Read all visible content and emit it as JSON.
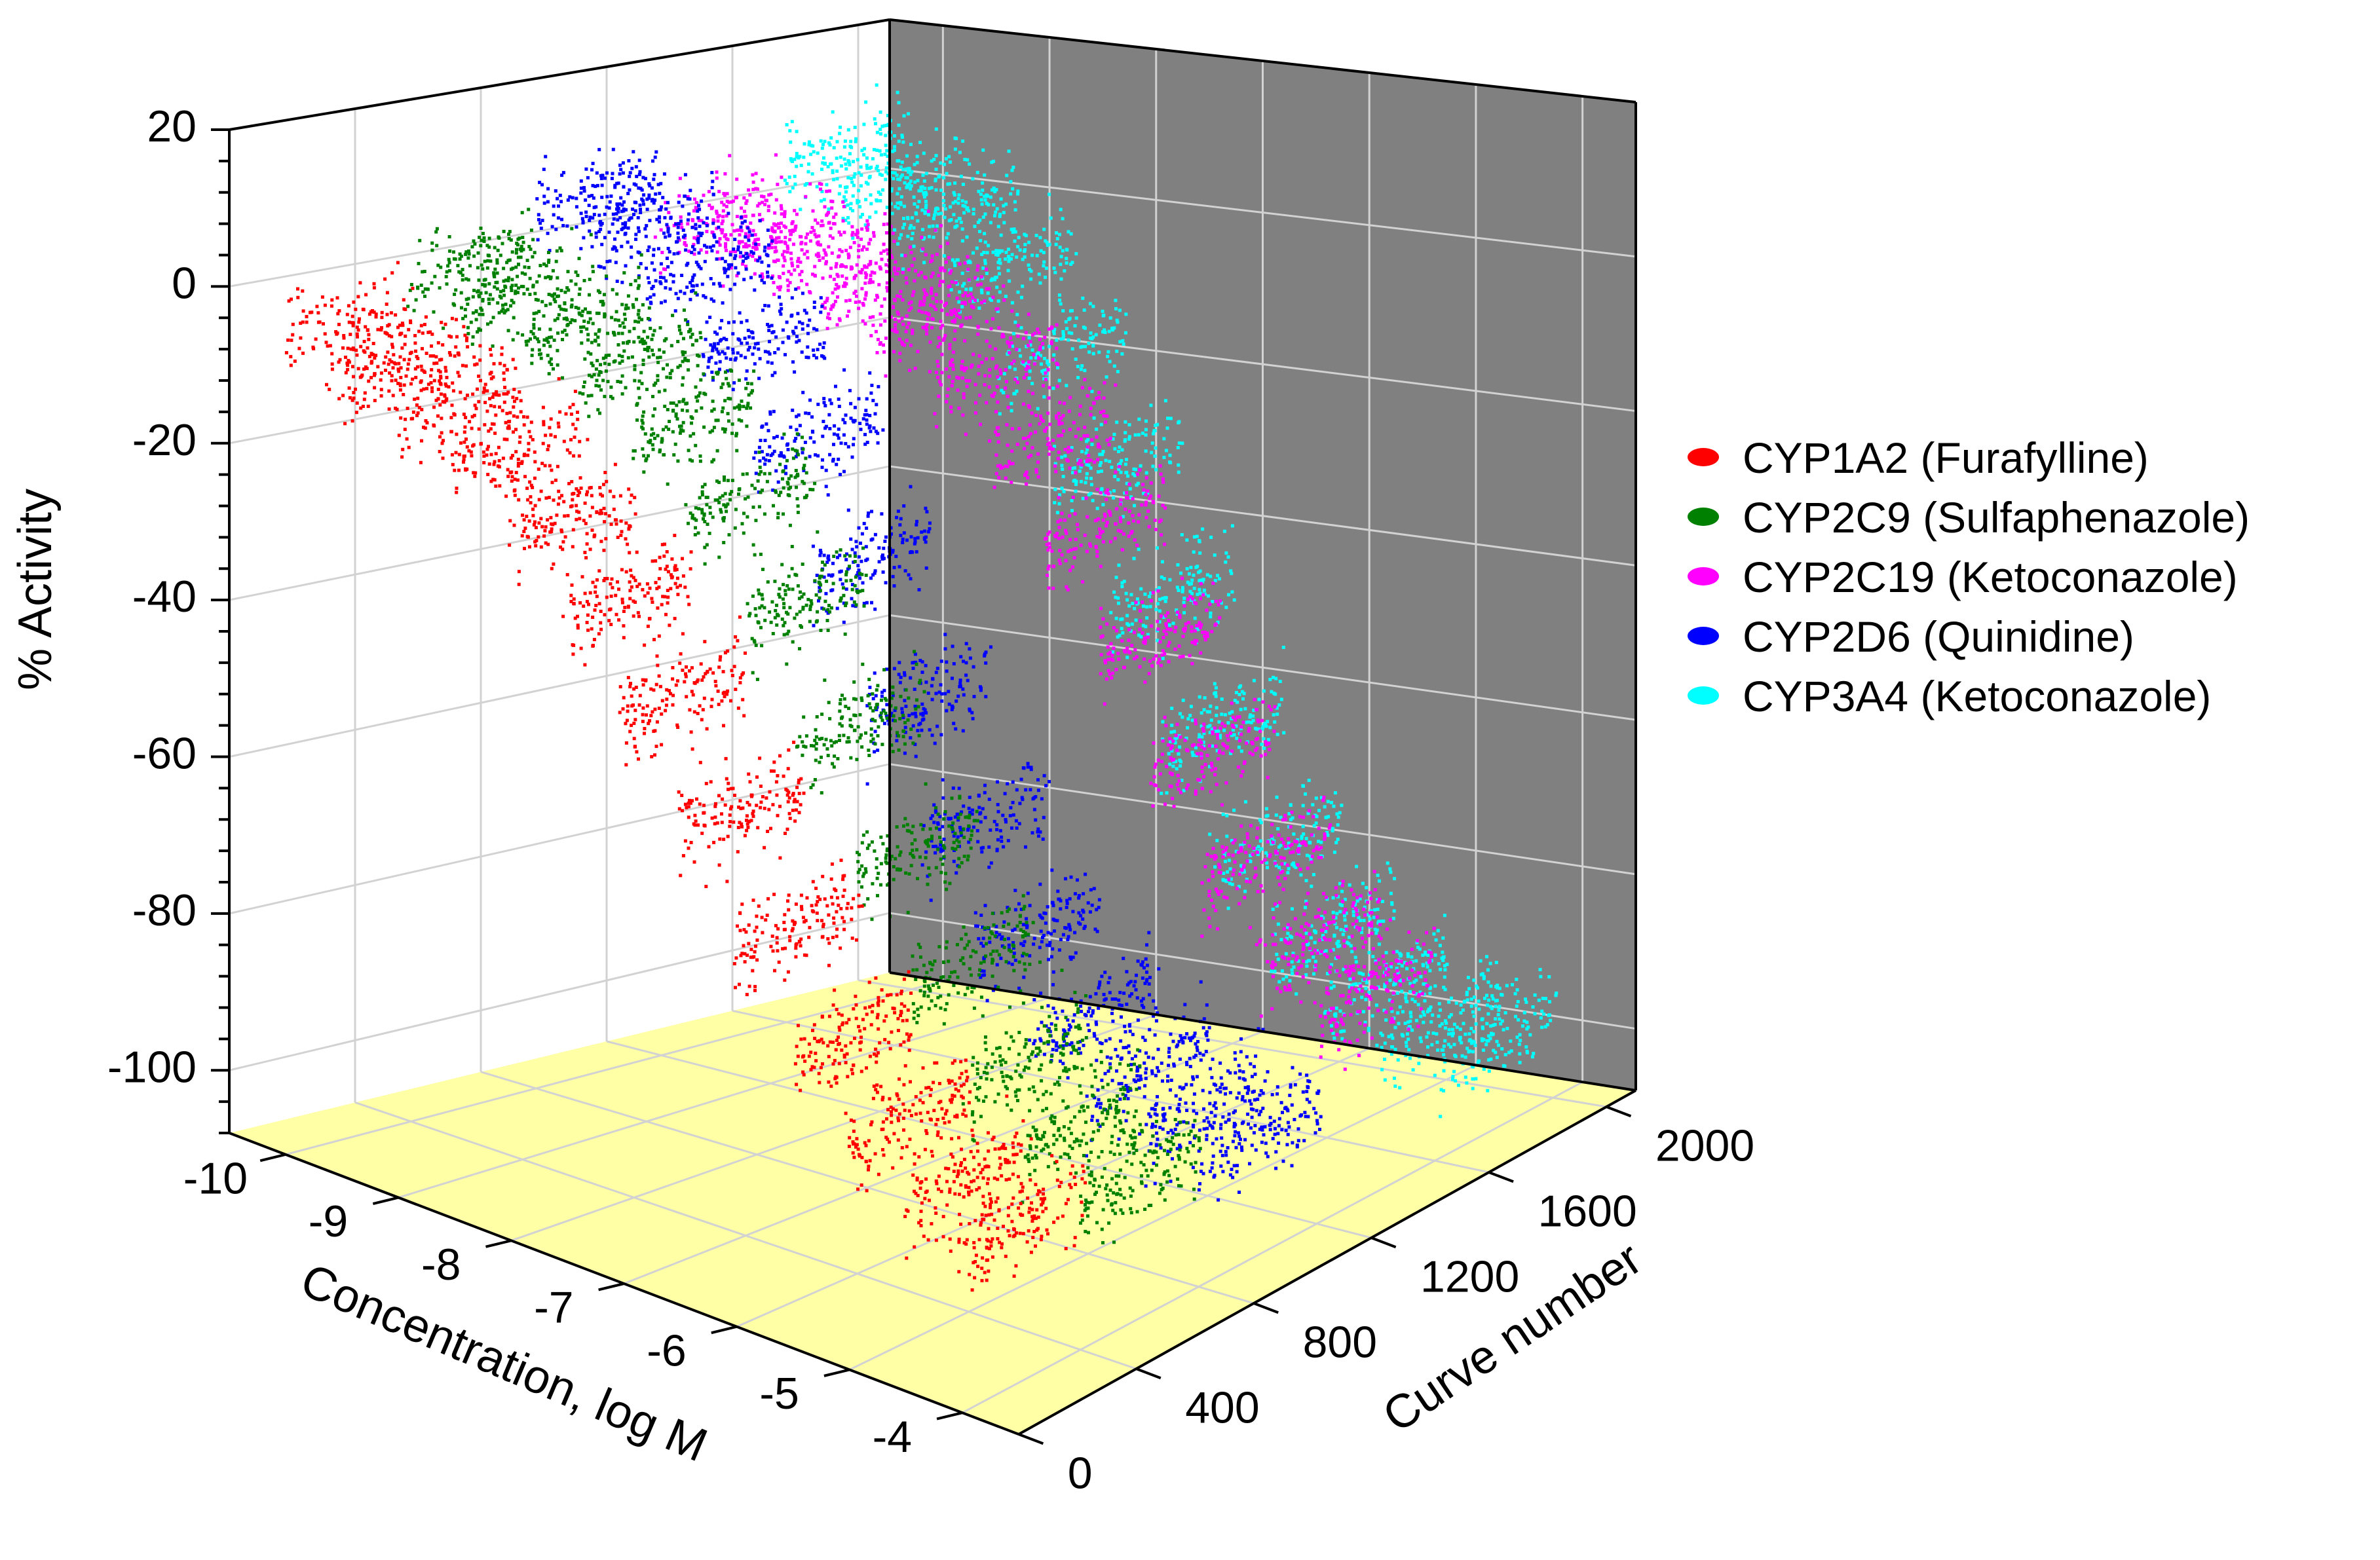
{
  "chart_data": {
    "type": "scatter3d",
    "title": "",
    "xlabel": "Concentration, log M",
    "ylabel": "Curve number",
    "zlabel": "% Activity",
    "xlim": [
      -10.5,
      -3.5
    ],
    "ylim": [
      0,
      2100
    ],
    "zlim": [
      -108,
      20
    ],
    "x_ticks": [
      -10,
      -9,
      -8,
      -7,
      -6,
      -5,
      -4
    ],
    "x_tick_labels": [
      "-10",
      "-9",
      "-8",
      "-7",
      "-6",
      "-5",
      "-4"
    ],
    "y_ticks": [
      0,
      400,
      800,
      1200,
      1600,
      2000
    ],
    "y_tick_labels": [
      "0",
      "400",
      "800",
      "1200",
      "1600",
      "2000"
    ],
    "z_ticks": [
      20,
      0,
      -20,
      -40,
      -60,
      -80,
      -100
    ],
    "z_tick_labels": [
      "20",
      "0",
      "-20",
      "-40",
      "-60",
      "-80",
      "-100"
    ],
    "colors": {
      "floor": "#ffffa6",
      "back_wall": "#808080",
      "left_wall": "#ffffff",
      "grid": "#d2d2d2"
    },
    "legend_position": "right",
    "series": [
      {
        "name": "CYP1A2 (Furafylline)",
        "color": "#ff0000",
        "curve_range": [
          0,
          400
        ],
        "concentrations": [
          -10,
          -9.5,
          -9,
          -8.5,
          -8,
          -7.5,
          -7,
          -6.5,
          -6,
          -5.5,
          -5,
          -4.5,
          -4
        ],
        "activity": [
          -5,
          -7,
          -9,
          -13,
          -19,
          -27,
          -37,
          -49,
          -61,
          -72,
          -80,
          -85,
          -88
        ]
      },
      {
        "name": "CYP2C9 (Sulfaphenazole)",
        "color": "#008000",
        "curve_range": [
          400,
          800
        ],
        "concentrations": [
          -10,
          -9.5,
          -9,
          -8.5,
          -8,
          -7.5,
          -7,
          -6.5,
          -6,
          -5.5,
          -5,
          -4.5,
          -4
        ],
        "activity": [
          0,
          -1,
          -3,
          -6,
          -11,
          -19,
          -30,
          -44,
          -58,
          -70,
          -80,
          -86,
          -90
        ]
      },
      {
        "name": "CYP2C19 (Ketoconazole)",
        "color": "#ff00ff",
        "curve_range": [
          1200,
          1600
        ],
        "concentrations": [
          -10,
          -9.5,
          -9,
          -8.5,
          -8,
          -7.5,
          -7,
          -6.5,
          -6,
          -5.5,
          -5,
          -4.5,
          -4
        ],
        "activity": [
          0,
          -1,
          -2,
          -4,
          -7,
          -12,
          -20,
          -30,
          -43,
          -56,
          -68,
          -77,
          -82
        ]
      },
      {
        "name": "CYP2D6 (Quinidine)",
        "color": "#0000ff",
        "curve_range": [
          800,
          1200
        ],
        "concentrations": [
          -10,
          -9.5,
          -9,
          -8.5,
          -8,
          -7.5,
          -7,
          -6.5,
          -6,
          -5.5,
          -5,
          -4.5,
          -4
        ],
        "activity": [
          6,
          4,
          0,
          -7,
          -18,
          -32,
          -48,
          -62,
          -74,
          -83,
          -88,
          -91,
          -92
        ]
      },
      {
        "name": "CYP3A4 (Ketoconazole)",
        "color": "#00ffff",
        "curve_range": [
          1600,
          2000
        ],
        "concentrations": [
          -10,
          -9.5,
          -9,
          -8.5,
          -8,
          -7.5,
          -7,
          -6.5,
          -6,
          -5.5,
          -5,
          -4.5,
          -4
        ],
        "activity": [
          5,
          3,
          0,
          -6,
          -16,
          -30,
          -46,
          -62,
          -76,
          -86,
          -92,
          -95,
          -96
        ]
      }
    ]
  }
}
